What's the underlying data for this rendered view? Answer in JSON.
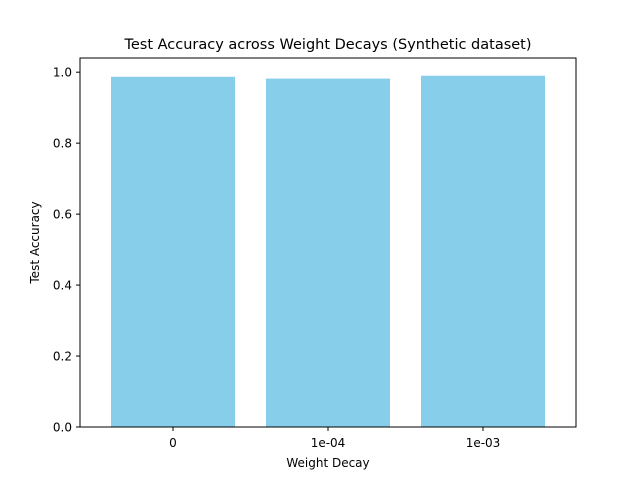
{
  "chart_data": {
    "type": "bar",
    "title": "Test Accuracy across Weight Decays (Synthetic dataset)",
    "xlabel": "Weight Decay",
    "ylabel": "Test Accuracy",
    "categories": [
      "0",
      "1e-04",
      "1e-03"
    ],
    "values": [
      0.987,
      0.982,
      0.99
    ],
    "ylim": [
      0.0,
      1.04
    ],
    "yticks": [
      0.0,
      0.2,
      0.4,
      0.6,
      0.8,
      1.0
    ],
    "ytick_labels": [
      "0.0",
      "0.2",
      "0.4",
      "0.6",
      "0.8",
      "1.0"
    ],
    "grid": false,
    "bar_color": "#87CEEB",
    "axis_color": "#000000"
  }
}
